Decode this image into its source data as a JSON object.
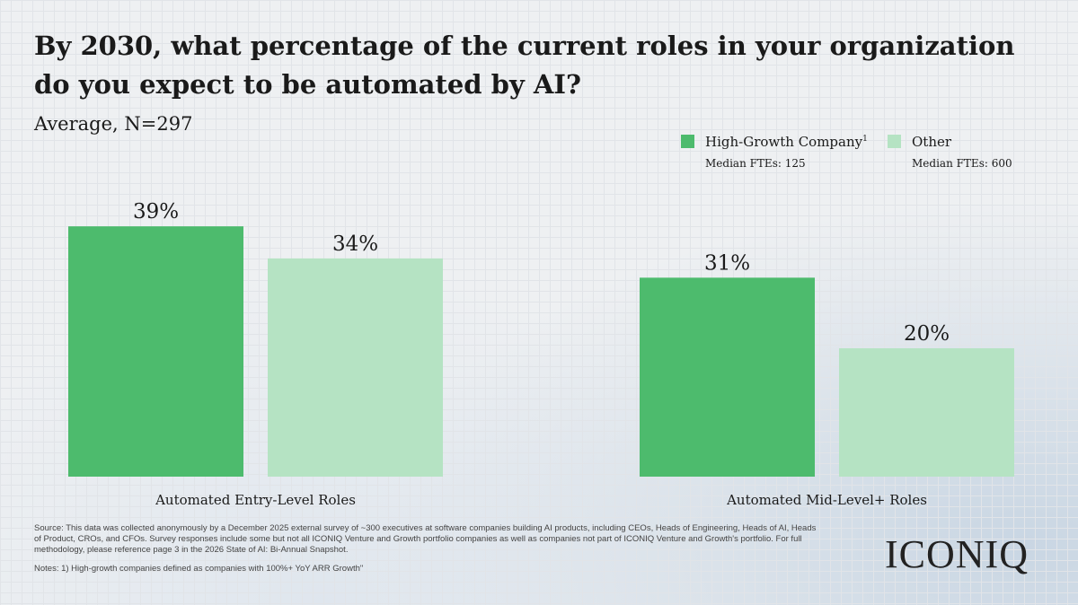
{
  "chart_data": {
    "type": "bar",
    "title": "By 2030, what percentage of the current roles in your organization do you expect to be automated by AI?",
    "subtitle": "Average, N=297",
    "categories": [
      "Automated Entry-Level Roles",
      "Automated Mid-Level+ Roles"
    ],
    "series": [
      {
        "name": "High-Growth Company",
        "note_marker": "1",
        "detail": "Median FTEs: 125",
        "color": "#4dbb6d",
        "values": [
          39,
          31
        ],
        "value_labels": [
          "39%",
          "31%"
        ]
      },
      {
        "name": "Other",
        "detail": "Median FTEs: 600",
        "color": "#b5e3c3",
        "values": [
          34,
          20
        ],
        "value_labels": [
          "34%",
          "20%"
        ]
      }
    ],
    "source": "Source:  This data was collected anonymously by a December 2025 external survey of ~300 executives at software companies building AI products, including CEOs, Heads of Engineering, Heads of AI, Heads of Product, CROs, and CFOs. Survey responses include some but not all ICONIQ Venture and Growth portfolio companies as well as companies not part of ICONIQ Venture and Growth's portfolio. For full methodology, please reference page 3 in the 2026 State of AI: Bi-Annual Snapshot.",
    "notes": "Notes: 1) High-growth companies defined as companies with 100%+ YoY ARR Growth\"",
    "brand": "ICONIQ"
  }
}
